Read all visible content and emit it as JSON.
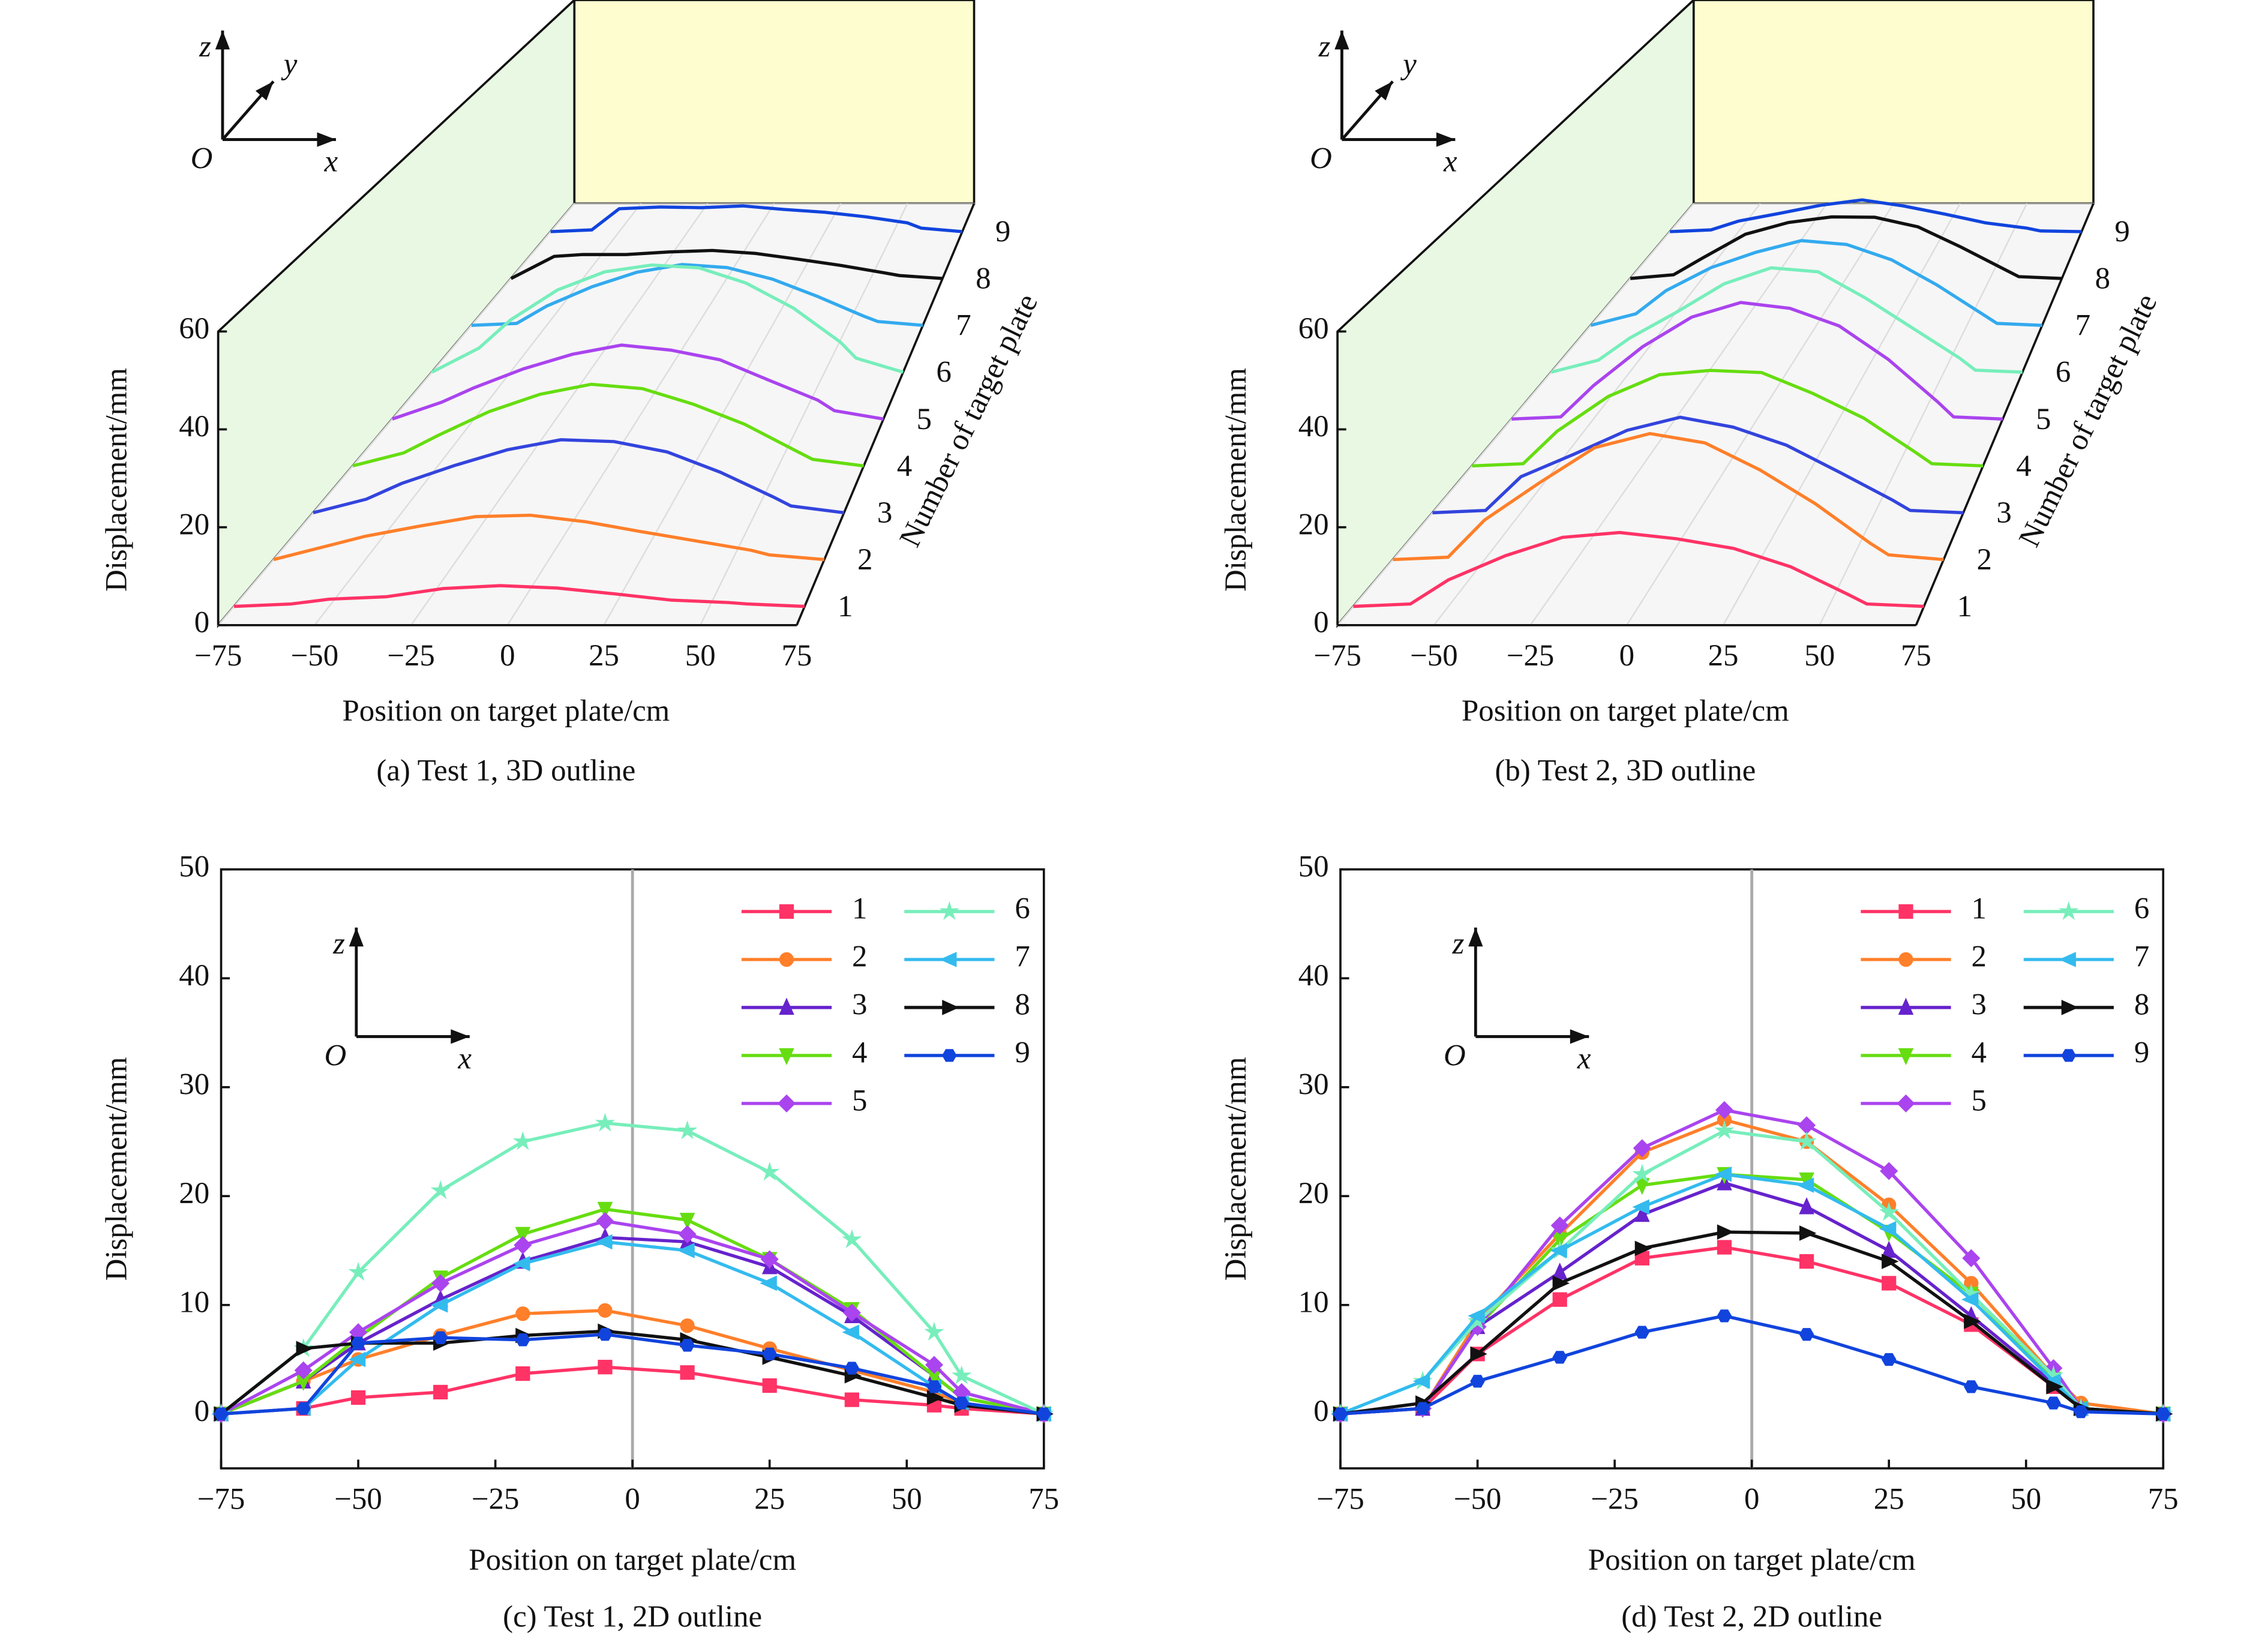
{
  "chart_data": [
    {
      "type": "line3d",
      "caption": "(a) Test 1, 3D outline",
      "x_label": "Position on target plate/cm",
      "y_label": "Displacement/mm",
      "depth_label": "Number of target plate",
      "axis_icon": {
        "z": "z",
        "y": "y",
        "x": "x",
        "origin": "O"
      },
      "x": [
        -75,
        -60,
        -50,
        -35,
        -20,
        -5,
        10,
        25,
        40,
        55,
        60,
        75
      ],
      "xlim": [
        -75,
        75
      ],
      "xticks": [
        {
          "value": -75,
          "label": "−75"
        },
        {
          "value": -50,
          "label": "−50"
        },
        {
          "value": -25,
          "label": "−25"
        },
        0,
        25,
        50,
        75
      ],
      "ylim": [
        0,
        60
      ],
      "yticks": [
        0,
        20,
        40,
        60
      ],
      "series": [
        {
          "name": "1",
          "color": "#ff3366",
          "values": [
            0,
            0.5,
            1.5,
            2,
            3.7,
            4.3,
            3.8,
            2.6,
            1.3,
            0.8,
            0.5,
            0
          ]
        },
        {
          "name": "2",
          "color": "#ff7f2a",
          "values": [
            0,
            3,
            5,
            7.2,
            9.2,
            9.5,
            8.1,
            6,
            4,
            2,
            1,
            0
          ]
        },
        {
          "name": "3",
          "color": "#3344dd",
          "values": [
            0,
            3,
            6.5,
            10.5,
            14,
            16.2,
            15.8,
            13.5,
            9,
            3.5,
            1.5,
            0
          ]
        },
        {
          "name": "4",
          "color": "#66dd11",
          "values": [
            0,
            3,
            7,
            12.5,
            16.5,
            18.8,
            17.8,
            14.2,
            9.6,
            3.5,
            1.5,
            0
          ]
        },
        {
          "name": "5",
          "color": "#aa44ee",
          "values": [
            0,
            4,
            7.5,
            12,
            15.5,
            17.7,
            16.5,
            14.2,
            9.3,
            4.5,
            2,
            0
          ]
        },
        {
          "name": "6",
          "color": "#77eebb",
          "values": [
            0,
            6,
            13,
            20.5,
            25,
            26.7,
            26,
            22.2,
            16,
            7.5,
            3.5,
            0
          ]
        },
        {
          "name": "7",
          "color": "#33aaee",
          "values": [
            0,
            0.5,
            5,
            10,
            13.8,
            15.8,
            15,
            12,
            7.5,
            2.5,
            1,
            0
          ]
        },
        {
          "name": "8",
          "color": "#111111",
          "values": [
            0,
            6,
            6.5,
            6.5,
            7.2,
            7.6,
            6.8,
            5.2,
            3.5,
            1.5,
            0.8,
            0
          ]
        },
        {
          "name": "9",
          "color": "#1144dd",
          "values": [
            0,
            0.5,
            6.5,
            7,
            6.8,
            7.3,
            6.3,
            5.5,
            4.2,
            2.5,
            1,
            0
          ]
        }
      ]
    },
    {
      "type": "line3d",
      "caption": "(b) Test 2, 3D outline",
      "x_label": "Position on target plate/cm",
      "y_label": "Displacement/mm",
      "depth_label": "Number of target plate",
      "axis_icon": {
        "z": "z",
        "y": "y",
        "x": "x",
        "origin": "O"
      },
      "x": [
        -75,
        -60,
        -50,
        -35,
        -20,
        -5,
        10,
        25,
        40,
        55,
        60,
        75
      ],
      "xlim": [
        -75,
        75
      ],
      "xticks": [
        {
          "value": -75,
          "label": "−75"
        },
        {
          "value": -50,
          "label": "−50"
        },
        {
          "value": -25,
          "label": "−25"
        },
        0,
        25,
        50,
        75
      ],
      "ylim": [
        0,
        60
      ],
      "yticks": [
        0,
        20,
        40,
        60
      ],
      "series": [
        {
          "name": "1",
          "color": "#ff3366",
          "values": [
            0,
            0.5,
            5.5,
            10.5,
            14.3,
            15.3,
            14,
            12,
            8.2,
            2.5,
            0.5,
            0
          ]
        },
        {
          "name": "2",
          "color": "#ff7f2a",
          "values": [
            0,
            0.5,
            8.5,
            16.5,
            24,
            27,
            25,
            19.2,
            12,
            3.5,
            1,
            0
          ]
        },
        {
          "name": "3",
          "color": "#3344dd",
          "values": [
            0,
            0.5,
            8,
            13,
            18.3,
            21.2,
            19,
            15,
            9,
            2.8,
            0.5,
            0
          ]
        },
        {
          "name": "4",
          "color": "#66dd11",
          "values": [
            0,
            0.5,
            8,
            16,
            21,
            22,
            21.5,
            16.7,
            11,
            3.2,
            0.5,
            0
          ]
        },
        {
          "name": "5",
          "color": "#aa44ee",
          "values": [
            0,
            0.5,
            8,
            17.3,
            24.4,
            27.9,
            26.5,
            22.3,
            14.3,
            4.2,
            0.5,
            0
          ]
        },
        {
          "name": "6",
          "color": "#77eebb",
          "values": [
            0,
            3,
            8.5,
            15,
            22,
            26,
            25,
            18.5,
            11,
            3.5,
            0.5,
            0
          ]
        },
        {
          "name": "7",
          "color": "#33aaee",
          "values": [
            0,
            3,
            9,
            15,
            19,
            22,
            21,
            17,
            10.5,
            3,
            0.5,
            0
          ]
        },
        {
          "name": "8",
          "color": "#111111",
          "values": [
            0,
            1,
            5.5,
            12,
            15.2,
            16.7,
            16.6,
            14,
            8.5,
            2.5,
            0.5,
            0
          ]
        },
        {
          "name": "9",
          "color": "#1144dd",
          "values": [
            0,
            0.5,
            3,
            5.2,
            7.5,
            9,
            7.3,
            5,
            2.5,
            1,
            0.2,
            0
          ]
        }
      ]
    },
    {
      "type": "line",
      "caption": "(c) Test 1, 2D outline",
      "x_label": "Position on target plate/cm",
      "y_label": "Displacement/mm",
      "axis_icon": {
        "z": "z",
        "x": "x",
        "origin": "O"
      },
      "x": [
        -75,
        -60,
        -50,
        -35,
        -20,
        -5,
        10,
        25,
        40,
        55,
        60,
        75
      ],
      "xlim": [
        -75,
        75
      ],
      "vline": 0,
      "xticks": [
        {
          "value": -75,
          "label": "−75"
        },
        {
          "value": -50,
          "label": "−50"
        },
        {
          "value": -25,
          "label": "−25"
        },
        0,
        25,
        50,
        75
      ],
      "ylim": [
        -5,
        50
      ],
      "yticks": [
        0,
        10,
        20,
        30,
        40,
        50
      ],
      "legend": "upper right",
      "series": [
        {
          "name": "1",
          "color": "#ff3366",
          "marker": "square",
          "values": [
            0,
            0.5,
            1.5,
            2,
            3.7,
            4.3,
            3.8,
            2.6,
            1.3,
            0.8,
            0.5,
            0
          ]
        },
        {
          "name": "2",
          "color": "#ff7f2a",
          "marker": "circle",
          "values": [
            0,
            3,
            5,
            7.2,
            9.2,
            9.5,
            8.1,
            6,
            4,
            2,
            1,
            0
          ]
        },
        {
          "name": "3",
          "color": "#6622cc",
          "marker": "triangle-up",
          "values": [
            0,
            3,
            6.5,
            10.5,
            14,
            16.2,
            15.8,
            13.5,
            9,
            3.5,
            1.5,
            0
          ]
        },
        {
          "name": "4",
          "color": "#66dd11",
          "marker": "triangle-down",
          "values": [
            0,
            3,
            7,
            12.5,
            16.5,
            18.8,
            17.8,
            14.2,
            9.6,
            3.5,
            1.5,
            0
          ]
        },
        {
          "name": "5",
          "color": "#aa44ee",
          "marker": "diamond",
          "values": [
            0,
            4,
            7.5,
            12,
            15.5,
            17.7,
            16.5,
            14.2,
            9.3,
            4.5,
            2,
            0
          ]
        },
        {
          "name": "6",
          "color": "#77eebb",
          "marker": "star",
          "values": [
            0,
            6,
            13,
            20.5,
            25,
            26.7,
            26,
            22.2,
            16,
            7.5,
            3.5,
            0
          ]
        },
        {
          "name": "7",
          "color": "#33bbee",
          "marker": "triangle-left",
          "values": [
            0,
            0.5,
            5,
            10,
            13.8,
            15.8,
            15,
            12,
            7.5,
            2.5,
            1,
            0
          ]
        },
        {
          "name": "8",
          "color": "#111111",
          "marker": "triangle-right",
          "values": [
            0,
            6,
            6.5,
            6.5,
            7.2,
            7.6,
            6.8,
            5.2,
            3.5,
            1.5,
            0.8,
            0
          ]
        },
        {
          "name": "9",
          "color": "#1144dd",
          "marker": "hexagon",
          "values": [
            0,
            0.5,
            6.5,
            7,
            6.8,
            7.3,
            6.3,
            5.5,
            4.2,
            2.5,
            1,
            0
          ]
        }
      ]
    },
    {
      "type": "line",
      "caption": "(d) Test 2, 2D outline",
      "x_label": "Position on target plate/cm",
      "y_label": "Displacement/mm",
      "axis_icon": {
        "z": "z",
        "x": "x",
        "origin": "O"
      },
      "x": [
        -75,
        -60,
        -50,
        -35,
        -20,
        -5,
        10,
        25,
        40,
        55,
        60,
        75
      ],
      "xlim": [
        -75,
        75
      ],
      "vline": 0,
      "xticks": [
        {
          "value": -75,
          "label": "−75"
        },
        {
          "value": -50,
          "label": "−50"
        },
        {
          "value": -25,
          "label": "−25"
        },
        0,
        25,
        50,
        75
      ],
      "ylim": [
        -5,
        50
      ],
      "yticks": [
        0,
        10,
        20,
        30,
        40,
        50
      ],
      "legend": "upper right",
      "series": [
        {
          "name": "1",
          "color": "#ff3366",
          "marker": "square",
          "values": [
            0,
            0.5,
            5.5,
            10.5,
            14.3,
            15.3,
            14,
            12,
            8.2,
            2.5,
            0.5,
            0
          ]
        },
        {
          "name": "2",
          "color": "#ff7f2a",
          "marker": "circle",
          "values": [
            0,
            0.5,
            8.5,
            16.5,
            24,
            27,
            25,
            19.2,
            12,
            3.5,
            1,
            0
          ]
        },
        {
          "name": "3",
          "color": "#6622cc",
          "marker": "triangle-up",
          "values": [
            0,
            0.5,
            8,
            13,
            18.3,
            21.2,
            19,
            15,
            9,
            2.8,
            0.5,
            0
          ]
        },
        {
          "name": "4",
          "color": "#66dd11",
          "marker": "triangle-down",
          "values": [
            0,
            0.5,
            8,
            16,
            21,
            22,
            21.5,
            16.7,
            11,
            3.2,
            0.5,
            0
          ]
        },
        {
          "name": "5",
          "color": "#aa44ee",
          "marker": "diamond",
          "values": [
            0,
            0.5,
            8,
            17.3,
            24.4,
            27.9,
            26.5,
            22.3,
            14.3,
            4.2,
            0.5,
            0
          ]
        },
        {
          "name": "6",
          "color": "#77eebb",
          "marker": "star",
          "values": [
            0,
            3,
            8.5,
            15,
            22,
            26,
            25,
            18.5,
            11,
            3.5,
            0.5,
            0
          ]
        },
        {
          "name": "7",
          "color": "#33bbee",
          "marker": "triangle-left",
          "values": [
            0,
            3,
            9,
            15,
            19,
            22,
            21,
            17,
            10.5,
            3,
            0.5,
            0
          ]
        },
        {
          "name": "8",
          "color": "#111111",
          "marker": "triangle-right",
          "values": [
            0,
            1,
            5.5,
            12,
            15.2,
            16.7,
            16.6,
            14,
            8.5,
            2.5,
            0.5,
            0
          ]
        },
        {
          "name": "9",
          "color": "#1144dd",
          "marker": "hexagon",
          "values": [
            0,
            0.5,
            3,
            5.2,
            7.5,
            9,
            7.3,
            5,
            2.5,
            1,
            0.2,
            0
          ]
        }
      ]
    }
  ]
}
